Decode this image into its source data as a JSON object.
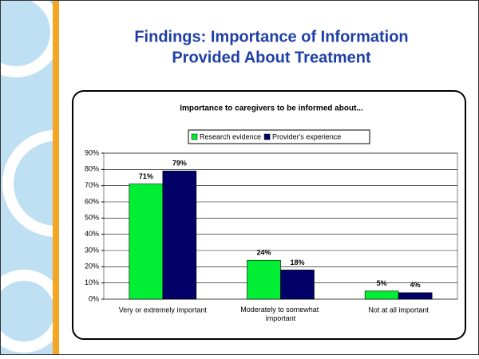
{
  "slide": {
    "title": [
      "Findings: Importance of Information",
      "Provided About Treatment"
    ]
  },
  "chart_data": {
    "type": "bar",
    "title": "Importance to caregivers to be informed about...",
    "categories": [
      "Very or extremely important",
      "Moderately to somewhat important",
      "Not at all important"
    ],
    "series": [
      {
        "name": "Research evidence",
        "color": "#00ee33",
        "values": [
          71,
          24,
          5
        ],
        "value_labels": [
          "71%",
          "24%",
          "5%"
        ]
      },
      {
        "name": "Provider's experience",
        "color": "#000066",
        "values": [
          79,
          18,
          4
        ],
        "value_labels": [
          "79%",
          "18%",
          "4%"
        ]
      }
    ],
    "ylim": [
      0,
      90
    ],
    "yticks": [
      {
        "value": 0,
        "label": "0%"
      },
      {
        "value": 10,
        "label": "10%"
      },
      {
        "value": 20,
        "label": "20%"
      },
      {
        "value": 30,
        "label": "30%"
      },
      {
        "value": 40,
        "label": "40%"
      },
      {
        "value": 50,
        "label": "50%"
      },
      {
        "value": 60,
        "label": "60%"
      },
      {
        "value": 70,
        "label": "70%"
      },
      {
        "value": 80,
        "label": "80%"
      },
      {
        "value": 90,
        "label": "90%"
      }
    ],
    "grid": true,
    "legend": "top"
  }
}
